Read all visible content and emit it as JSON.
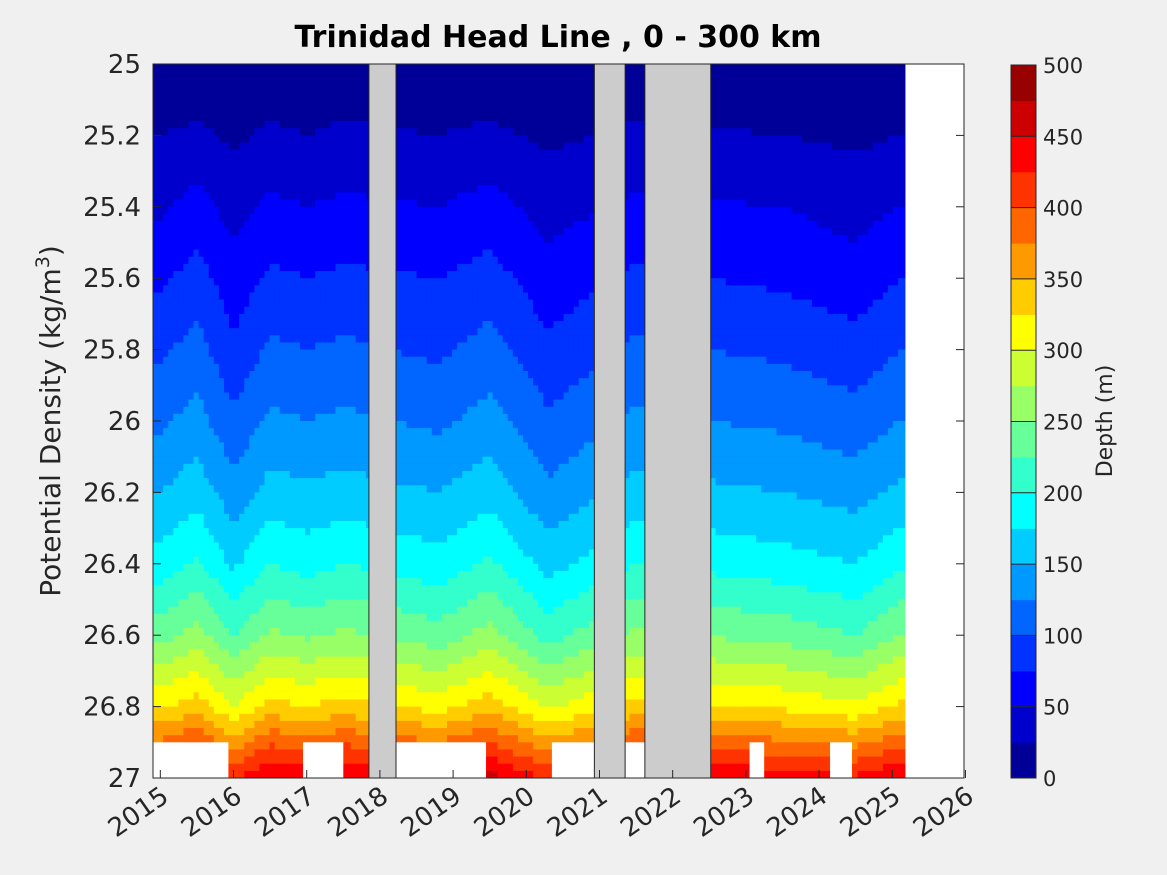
{
  "chart_data": {
    "type": "heatmap",
    "title": "Trinidad Head Line , 0 - 300 km",
    "xlabel": "",
    "ylabel": "Potential Density (kg/m",
    "ylabel_sup": "3",
    "ylabel_end": ")",
    "x_range": [
      2014.9,
      2025.98
    ],
    "x_ticks": [
      2015,
      2016,
      2017,
      2018,
      2019,
      2020,
      2021,
      2022,
      2023,
      2024,
      2025,
      2026
    ],
    "x_tick_labels": [
      "2015",
      "2016",
      "2017",
      "2018",
      "2019",
      "2020",
      "2021",
      "2022",
      "2023",
      "2024",
      "2025",
      "2026"
    ],
    "y_range": [
      25,
      27
    ],
    "y_reversed": true,
    "y_ticks": [
      25,
      25.2,
      25.4,
      25.6,
      25.8,
      26,
      26.2,
      26.4,
      26.6,
      26.8,
      27
    ],
    "y_tick_labels": [
      "25",
      "25.2",
      "25.4",
      "25.6",
      "25.8",
      "26",
      "26.2",
      "26.4",
      "26.6",
      "26.8",
      "27"
    ],
    "colorbar": {
      "label": "Depth (m)",
      "range": [
        0,
        500
      ],
      "ticks": [
        0,
        50,
        100,
        150,
        200,
        250,
        300,
        350,
        400,
        450,
        500
      ],
      "tick_labels": [
        "0",
        "50",
        "100",
        "150",
        "200",
        "250",
        "300",
        "350",
        "400",
        "450",
        "500"
      ],
      "colormap": "jet",
      "level_step": 25
    },
    "isopycnal_depth_series": [
      {
        "x": 2015.0,
        "depths": [
          5,
          25,
          45,
          70,
          95,
          120,
          150,
          185,
          240,
          320,
          440
        ]
      },
      {
        "x": 2015.5,
        "depths": [
          5,
          30,
          60,
          85,
          110,
          135,
          165,
          205,
          260,
          340,
          460
        ]
      },
      {
        "x": 2016.0,
        "depths": [
          5,
          20,
          40,
          60,
          80,
          105,
          135,
          170,
          225,
          300,
          420
        ]
      },
      {
        "x": 2016.5,
        "depths": [
          5,
          30,
          55,
          80,
          105,
          130,
          160,
          200,
          255,
          335,
          455
        ]
      },
      {
        "x": 2017.0,
        "depths": [
          5,
          25,
          50,
          75,
          100,
          125,
          155,
          190,
          245,
          325,
          445
        ]
      },
      {
        "x": 2017.5,
        "depths": [
          5,
          30,
          55,
          80,
          105,
          130,
          160,
          200,
          255,
          335,
          455
        ]
      },
      {
        "x": 2018.8,
        "depths": [
          5,
          25,
          50,
          75,
          95,
          120,
          150,
          185,
          235,
          315,
          440
        ]
      },
      {
        "x": 2019.5,
        "depths": [
          5,
          30,
          60,
          85,
          110,
          135,
          165,
          205,
          260,
          340,
          460
        ]
      },
      {
        "x": 2020.3,
        "depths": [
          5,
          20,
          40,
          60,
          80,
          105,
          130,
          165,
          215,
          295,
          420
        ]
      },
      {
        "x": 2021.5,
        "depths": [
          5,
          30,
          55,
          80,
          105,
          130,
          160,
          200,
          255,
          335,
          455
        ]
      },
      {
        "x": 2023.5,
        "depths": [
          5,
          25,
          50,
          70,
          95,
          120,
          150,
          185,
          240,
          320,
          440
        ]
      },
      {
        "x": 2024.5,
        "depths": [
          5,
          20,
          40,
          60,
          85,
          110,
          140,
          175,
          225,
          305,
          430
        ]
      },
      {
        "x": 2025.1,
        "depths": [
          5,
          25,
          50,
          75,
          100,
          125,
          155,
          195,
          250,
          330,
          450
        ]
      }
    ],
    "no_data_periods": [
      {
        "start": 2017.85,
        "end": 2018.22
      },
      {
        "start": 2020.93,
        "end": 2021.35
      },
      {
        "start": 2021.62,
        "end": 2022.52
      }
    ]
  }
}
